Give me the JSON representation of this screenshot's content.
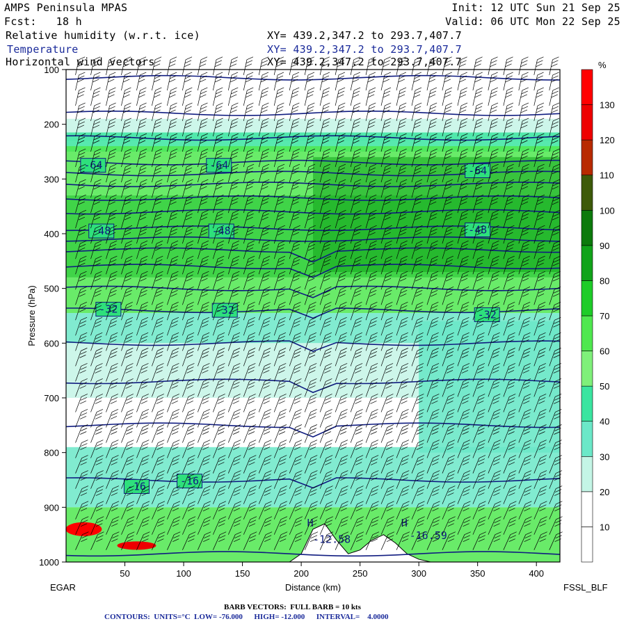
{
  "header": {
    "model": "AMPS Peninsula MPAS",
    "init": "Init: 12 UTC Sun 21 Sep 25",
    "fcst": "Fcst:   18 h",
    "valid": "Valid: 06 UTC Mon 22 Sep 25",
    "fields": [
      {
        "name": "Relative humidity (w.r.t. ice)",
        "xy": "XY= 439.2,347.2 to 293.7,407.7"
      },
      {
        "name": "Temperature",
        "xy": "XY= 439.2,347.2 to 293.7,407.7"
      },
      {
        "name": "Horizontal wind vectors",
        "xy": "XY= 439.2,347.2 to 293.7,407.7"
      }
    ]
  },
  "chart_data": {
    "type": "heatmap",
    "xlabel": "Distance (km)",
    "ylabel": "Pressure (hPa)",
    "xlim": [
      0,
      420
    ],
    "ylim": [
      1000,
      100
    ],
    "x_ticks": [
      50,
      100,
      150,
      200,
      250,
      300,
      350,
      400
    ],
    "y_ticks": [
      100,
      200,
      300,
      400,
      500,
      600,
      700,
      800,
      900,
      1000
    ],
    "left_label": "EGAR",
    "right_label": "FSSL_BLF",
    "colorbar": {
      "unit": "%",
      "levels": [
        10,
        20,
        30,
        40,
        50,
        60,
        70,
        80,
        90,
        100,
        110,
        120,
        130
      ],
      "colors": [
        "#ffffff",
        "#ffffff",
        "#c4f5e6",
        "#6be8c8",
        "#3ae5a0",
        "#7ff07a",
        "#4fe84f",
        "#1ecc28",
        "#11a31a",
        "#0c7a0c",
        "#3d5a0a",
        "#b82a00",
        "#ee0000",
        "#ff0000"
      ]
    },
    "temperature_contours": {
      "levels": [
        -64,
        -48,
        -32,
        -16
      ],
      "labels": [
        {
          "value": "-64",
          "x": 23,
          "p": 275
        },
        {
          "value": "-64",
          "x": 130,
          "p": 275
        },
        {
          "value": "-64",
          "x": 350,
          "p": 285
        },
        {
          "value": "-48",
          "x": 30,
          "p": 395
        },
        {
          "value": "-48",
          "x": 132,
          "p": 395
        },
        {
          "value": "-48",
          "x": 350,
          "p": 393
        },
        {
          "value": "-32",
          "x": 36,
          "p": 538
        },
        {
          "value": "-32",
          "x": 135,
          "p": 540
        },
        {
          "value": "-32",
          "x": 358,
          "p": 548
        },
        {
          "value": "-16",
          "x": 60,
          "p": 862
        },
        {
          "value": "-16",
          "x": 105,
          "p": 852
        }
      ],
      "extrema": [
        {
          "label": "H",
          "x": 205,
          "p": 935
        },
        {
          "label": "-12.58",
          "x": 210,
          "p": 965
        },
        {
          "label": "H",
          "x": 285,
          "p": 935
        },
        {
          "label": "-16.59",
          "x": 292,
          "p": 958
        }
      ]
    },
    "terrain": {
      "x": [
        190,
        200,
        210,
        220,
        230,
        240,
        250,
        260,
        270,
        280,
        290,
        300,
        310,
        320,
        340,
        360,
        380,
        400,
        420
      ],
      "p": [
        1000,
        985,
        940,
        930,
        960,
        985,
        978,
        960,
        950,
        965,
        985,
        995,
        1000,
        1000,
        1000,
        1000,
        1000,
        1000,
        1000
      ]
    },
    "footer": {
      "barbs": "BARB VECTORS:  FULL BARB = 10 kts",
      "contours": "CONTOURS:  UNITS=°C  LOW= -76.000      HIGH= -12.000      INTERVAL=    4.0000"
    }
  }
}
